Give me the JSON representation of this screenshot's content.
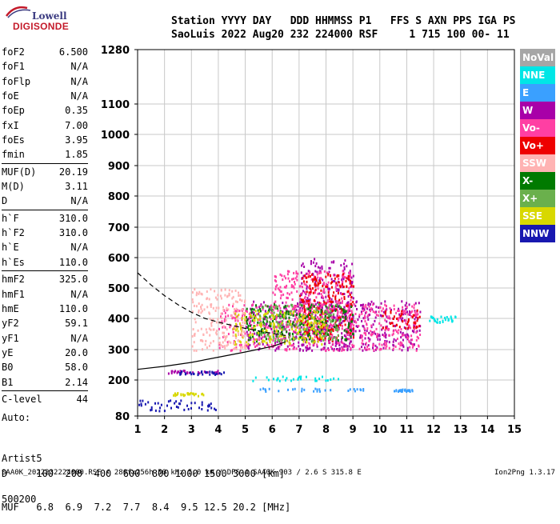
{
  "logo": {
    "line1": "Lowell",
    "line2": "DIGISONDE"
  },
  "header": {
    "line1": "Station YYYY DAY   DDD HHMMSS P1   FFS S AXN PPS IGA PS",
    "line2": "SaoLuis 2022 Aug20 232 224000 RSF     1 715 100 00- 11"
  },
  "params_groups": [
    [
      [
        "foF2",
        "6.500"
      ],
      [
        "foF1",
        "N/A"
      ],
      [
        "foFlp",
        "N/A"
      ],
      [
        "foE",
        "N/A"
      ],
      [
        "foEp",
        "0.35"
      ],
      [
        "fxI",
        "7.00"
      ],
      [
        "foEs",
        "3.95"
      ],
      [
        "fmin",
        "1.85"
      ]
    ],
    [
      [
        "MUF(D)",
        "20.19"
      ],
      [
        "M(D)",
        "3.11"
      ],
      [
        "D",
        "N/A"
      ]
    ],
    [
      [
        "h`F",
        "310.0"
      ],
      [
        "h`F2",
        "310.0"
      ],
      [
        "h`E",
        "N/A"
      ],
      [
        "h`Es",
        "110.0"
      ]
    ],
    [
      [
        "hmF2",
        "325.0"
      ],
      [
        "hmF1",
        "N/A"
      ],
      [
        "hmE",
        "110.0"
      ],
      [
        "yF2",
        "59.1"
      ],
      [
        "yF1",
        "N/A"
      ],
      [
        "yE",
        "20.0"
      ],
      [
        "B0",
        "58.0"
      ],
      [
        "B1",
        "2.14"
      ]
    ],
    [
      [
        "C-level",
        "44"
      ]
    ]
  ],
  "auto": {
    "line1": "Auto:",
    "line2": "Artist5",
    "line3": "500200"
  },
  "legend": [
    {
      "label": "NoVal",
      "color": "#a6a6a6"
    },
    {
      "label": "NNE",
      "color": "#00e6e6"
    },
    {
      "label": "E",
      "color": "#3aa0ff"
    },
    {
      "label": "W",
      "color": "#a800a8"
    },
    {
      "label": "Vo-",
      "color": "#ff3fa3"
    },
    {
      "label": "Vo+",
      "color": "#ee0000"
    },
    {
      "label": "SSW",
      "color": "#ffb3b3"
    },
    {
      "label": "X-",
      "color": "#007a00"
    },
    {
      "label": "X+",
      "color": "#6ab04c"
    },
    {
      "label": "SSE",
      "color": "#d8d800"
    },
    {
      "label": "NNW",
      "color": "#1818b0"
    }
  ],
  "dtable": {
    "row1": "D     100  200  400  600  800 1000 1500 3000 [km]",
    "row2": "MUF   6.8  6.9  7.2  7.7  8.4  9.5 12.5 20.2 [MHz]"
  },
  "footer": {
    "left": "SAA0K_2022232224000.RSF / 280fx256h 50 kHz 5.0 km / DPS-4 SAA0K 903 / 2.6 S 315.8 E",
    "right": "Ion2Png 1.3.17"
  },
  "chart_data": {
    "type": "scatter",
    "xlim": [
      1,
      15
    ],
    "x_ticks": [
      1,
      2,
      3,
      4,
      5,
      6,
      7,
      8,
      9,
      10,
      11,
      12,
      13,
      14,
      15
    ],
    "y_ticks": [
      80,
      200,
      300,
      400,
      500,
      600,
      700,
      800,
      900,
      1000,
      1100,
      1280
    ],
    "grid": true,
    "series": [
      {
        "name": "W",
        "color": "#a800a8",
        "regions": [
          [
            5.0,
            11.5,
            300,
            460
          ],
          [
            7.0,
            9.0,
            300,
            600
          ],
          [
            1.9,
            4.0,
            225,
            235
          ]
        ]
      },
      {
        "name": "Vo-",
        "color": "#ff3fa3",
        "regions": [
          [
            4.0,
            11.5,
            300,
            450
          ],
          [
            6.0,
            9.0,
            350,
            560
          ]
        ]
      },
      {
        "name": "Vo+",
        "color": "#ee0000",
        "regions": [
          [
            7.0,
            9.0,
            330,
            550
          ],
          [
            10.0,
            11.5,
            370,
            430
          ]
        ]
      },
      {
        "name": "X-",
        "color": "#007a00",
        "regions": [
          [
            5.0,
            9.0,
            330,
            450
          ]
        ]
      },
      {
        "name": "X+",
        "color": "#6ab04c",
        "regions": [
          [
            5.5,
            8.5,
            330,
            450
          ]
        ]
      },
      {
        "name": "SSE",
        "color": "#d8d800",
        "regions": [
          [
            4.5,
            8.0,
            320,
            430
          ],
          [
            2.3,
            3.5,
            150,
            160
          ]
        ]
      },
      {
        "name": "NNE",
        "color": "#00e6e6",
        "regions": [
          [
            11.8,
            12.8,
            390,
            410
          ],
          [
            5.2,
            8.5,
            200,
            215
          ]
        ]
      },
      {
        "name": "E",
        "color": "#3aa0ff",
        "regions": [
          [
            5.5,
            9.5,
            165,
            175
          ],
          [
            10.5,
            11.2,
            165,
            172
          ]
        ]
      },
      {
        "name": "NNW",
        "color": "#1818b0",
        "regions": [
          [
            1.0,
            4.0,
            100,
            135
          ],
          [
            2.5,
            4.2,
            220,
            232
          ]
        ]
      },
      {
        "name": "SSW",
        "color": "#ffb3b3",
        "regions": [
          [
            3.0,
            5.0,
            300,
            500
          ]
        ]
      }
    ],
    "curves": [
      {
        "style": "solid",
        "points": [
          [
            1,
            235
          ],
          [
            2,
            245
          ],
          [
            3,
            258
          ],
          [
            4,
            275
          ],
          [
            5,
            292
          ],
          [
            6,
            310
          ],
          [
            6.5,
            325
          ]
        ]
      },
      {
        "style": "dashed",
        "points": [
          [
            1,
            550
          ],
          [
            1.5,
            510
          ],
          [
            2,
            475
          ],
          [
            2.5,
            445
          ],
          [
            3,
            420
          ],
          [
            3.5,
            400
          ],
          [
            4,
            388
          ],
          [
            4.5,
            378
          ],
          [
            5,
            368
          ],
          [
            5.5,
            360
          ],
          [
            6,
            352
          ],
          [
            6.5,
            345
          ]
        ]
      }
    ]
  }
}
